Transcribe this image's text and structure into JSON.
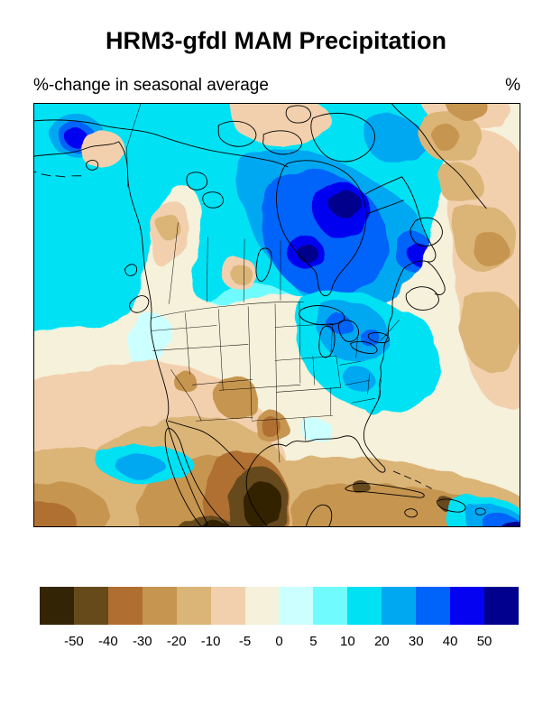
{
  "header": {
    "title": "HRM3-gfdl MAM Precipitation",
    "subtitle": "%-change in seasonal average",
    "unit_label": "%"
  },
  "chart_data": {
    "type": "heatmap",
    "subtype": "filled-contour-geographic-map",
    "title": "HRM3-gfdl MAM Precipitation",
    "subtitle": "%-change in seasonal average",
    "units": "%",
    "map_domain": "North America (Alaska and Arctic Canada to Mexico and the Caribbean, Pacific to western North Atlantic/Greenland)",
    "colorbar": {
      "orientation": "horizontal",
      "levels": [
        -50,
        -40,
        -30,
        -20,
        -10,
        -5,
        0,
        5,
        10,
        20,
        30,
        40,
        50
      ],
      "tick_labels": [
        "-50",
        "-40",
        "-30",
        "-20",
        "-10",
        "-5",
        "0",
        "5",
        "10",
        "20",
        "30",
        "40",
        "50"
      ],
      "colors": [
        "#332405",
        "#664a1a",
        "#b06f30",
        "#c6954f",
        "#dbb477",
        "#f2d0ae",
        "#f5f1da",
        "#ccffff",
        "#70fcff",
        "#00e1f4",
        "#00a8f2",
        "#0064fa",
        "#0402f0",
        "#00008c"
      ]
    },
    "regions_summary": [
      {
        "area": "central and northern Canada around Hudson Bay",
        "pct_change": "+30 to more than +50"
      },
      {
        "area": "Alaska, Yukon and western Canada",
        "pct_change": "+10 to +30"
      },
      {
        "area": "northern Great Plains, upper Midwest and Great Lakes",
        "pct_change": "+10 to +40"
      },
      {
        "area": "Northeast US and Atlantic Canada",
        "pct_change": "0 to +20"
      },
      {
        "area": "Pacific Northwest coast and offshore Pacific",
        "pct_change": "-5 to +10"
      },
      {
        "area": "southwestern US, Great Basin and Four Corners",
        "pct_change": "-10 to -40"
      },
      {
        "area": "Baja California and Gulf of California region",
        "pct_change": "-40 to less than -50"
      },
      {
        "area": "Mexico, Gulf of Mexico and Caribbean (Cuba, Hispaniola)",
        "pct_change": "-20 to -50"
      },
      {
        "area": "subtropical western North Atlantic and near Greenland",
        "pct_change": "-10 to -30"
      },
      {
        "area": "far southeastern map corner (tropical Atlantic edge)",
        "pct_change": "+10 to more than +50"
      }
    ]
  }
}
